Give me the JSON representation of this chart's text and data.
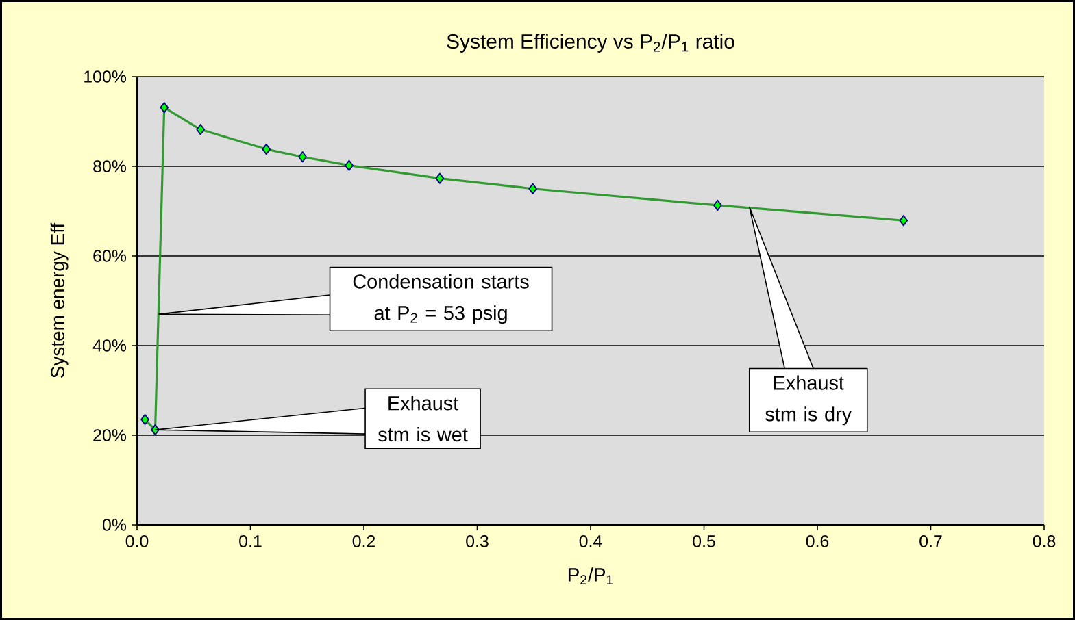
{
  "chart_data": {
    "type": "line",
    "title": "System Efficiency vs P$_{2}$/P$_{1}$ ratio",
    "xlabel": "P$_{2}$/P$_{1}$",
    "ylabel": "System energy Eff",
    "x": [
      0.007,
      0.016,
      0.024,
      0.056,
      0.114,
      0.146,
      0.187,
      0.267,
      0.349,
      0.512,
      0.676
    ],
    "series": [
      {
        "color": "#339933",
        "values": [
          23.5,
          21.2,
          93.1,
          88.2,
          83.8,
          82.1,
          80.2,
          77.3,
          75.0,
          71.3,
          67.9
        ]
      }
    ],
    "xlim": [
      0,
      0.8
    ],
    "ylim": [
      0,
      100
    ],
    "xticks": [
      {
        "value": 0,
        "label": "0.0"
      },
      0.1,
      0.2,
      0.3,
      0.4,
      0.5,
      0.6,
      0.7,
      0.8
    ],
    "yticks": [
      {
        "value": 0,
        "label": "0%"
      },
      {
        "value": 20,
        "label": "20%"
      },
      {
        "value": 40,
        "label": "40%"
      },
      {
        "value": 60,
        "label": "60%"
      },
      {
        "value": 80,
        "label": "80%"
      },
      {
        "value": 100,
        "label": "100%"
      }
    ],
    "annotations": [
      {
        "text": "Condensation starts at P$_{2}$ = 53 psig",
        "x": 0.019,
        "y": 47
      },
      {
        "text": "Exhaust stm is wet",
        "x": 0.016,
        "y": 21.2
      },
      {
        "text": "Exhaust stm is dry",
        "x": 0.54,
        "y": 71
      }
    ],
    "grid": "y",
    "marker": "diamond",
    "line_style": "solid"
  }
}
